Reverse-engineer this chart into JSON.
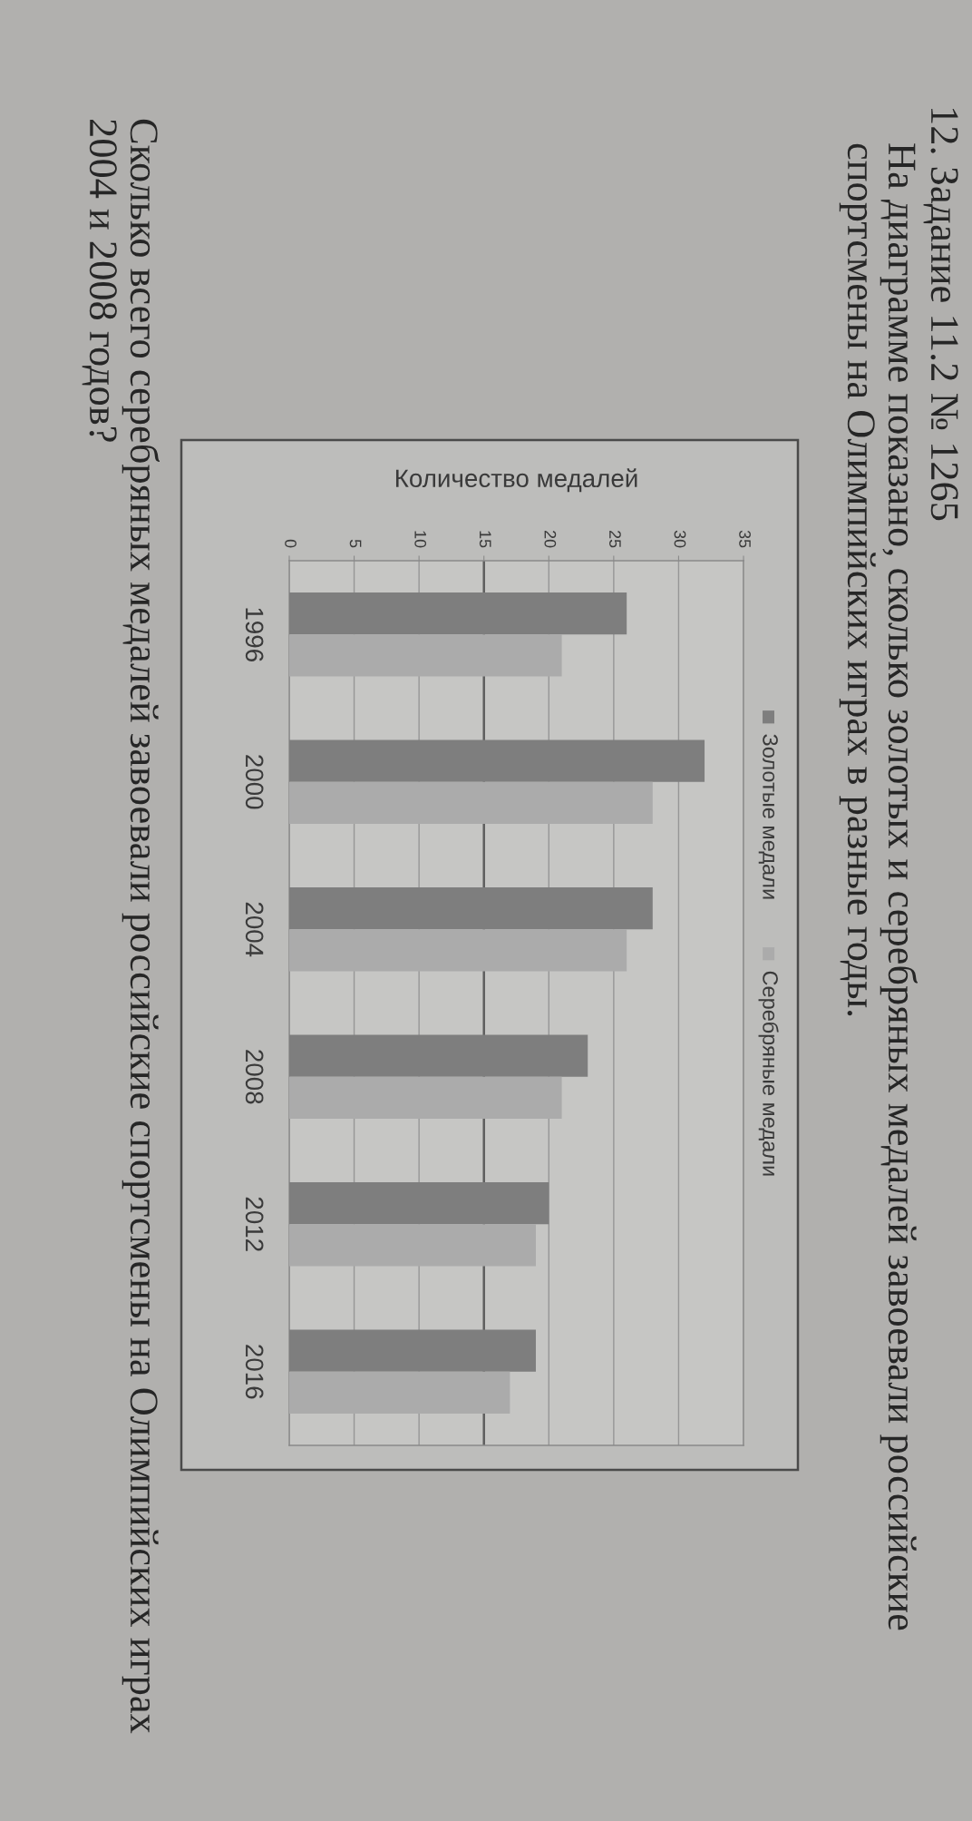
{
  "chart_data": {
    "type": "bar",
    "orientation": "horizontal",
    "title": "12. Задание 11.2 № 1265",
    "subtitle": "На диаграмме показано, сколько золотых и серебряных медалей завоевали российские спортсмены на Олимпийских играх в разные годы.",
    "xlabel": "Количество медалей",
    "annotations": [
      "Сколько всего серебряных медалей завоевали российские спортсмены на Олимпийских играх 2004 и 2008 годов?"
    ],
    "categories": [
      "1996",
      "2000",
      "2004",
      "2008",
      "2012",
      "2016"
    ],
    "series": [
      {
        "name": "Золотые медали",
        "color": "#7e7e7e",
        "values": [
          26,
          32,
          28,
          23,
          20,
          19
        ]
      },
      {
        "name": "Серебряные медали",
        "color": "#ababab",
        "values": [
          21,
          28,
          26,
          21,
          19,
          17
        ]
      }
    ],
    "xlim": [
      0,
      35
    ],
    "xticks": [
      0,
      5,
      10,
      15,
      20,
      25,
      30,
      35
    ],
    "grid": "x",
    "ref_lines": [
      {
        "axis": "x",
        "value": 15,
        "color": "#5e5e5e"
      }
    ],
    "legend": "right"
  }
}
